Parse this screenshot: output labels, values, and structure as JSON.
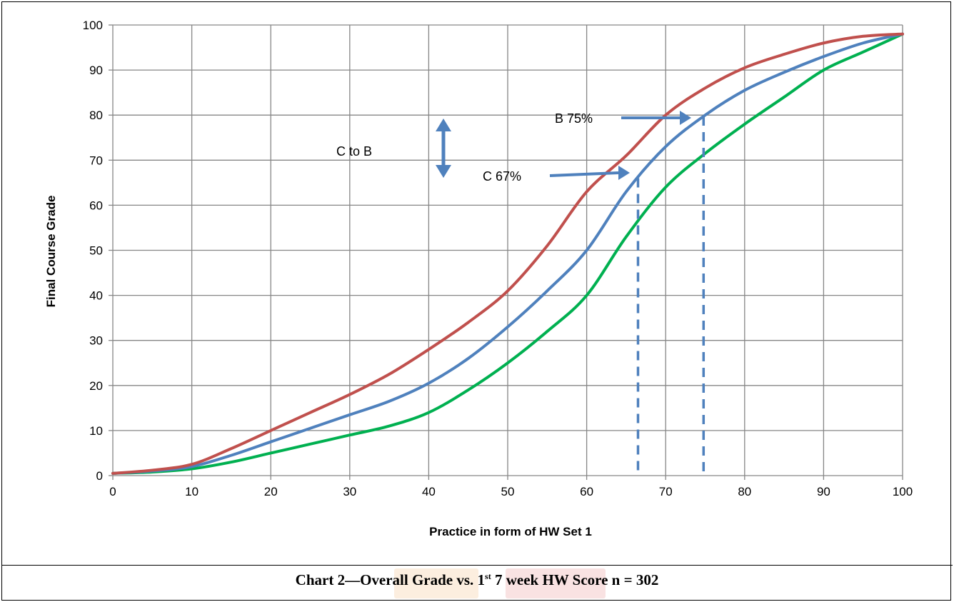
{
  "colors": {
    "red_series": "#C0504D",
    "blue_series": "#4F81BD",
    "green_series": "#00B050",
    "grid": "#868686",
    "arrow": "#4F81BD",
    "watermark_orange": "#F0A050",
    "watermark_red": "#E06060"
  },
  "chart_data": {
    "type": "line",
    "xlabel": "Practice in form of HW Set 1",
    "ylabel": "Final Course Grade",
    "xlim": [
      0,
      100
    ],
    "ylim": [
      0,
      100
    ],
    "x_ticks": [
      "0",
      "10",
      "20",
      "30",
      "40",
      "50",
      "60",
      "70",
      "80",
      "90",
      "100"
    ],
    "y_ticks": [
      "0",
      "10",
      "20",
      "30",
      "40",
      "50",
      "60",
      "70",
      "80",
      "90",
      "100"
    ],
    "grid": true,
    "legend": "none",
    "series": [
      {
        "color_key": "red_series",
        "x": [
          0,
          5,
          10,
          15,
          20,
          25,
          30,
          35,
          40,
          45,
          50,
          55,
          60,
          65,
          70,
          75,
          80,
          85,
          90,
          95,
          100
        ],
        "values": [
          0.5,
          1.2,
          2.5,
          6,
          10,
          14,
          18,
          22.5,
          28,
          34,
          41,
          51,
          63,
          71,
          80,
          86,
          90.5,
          93.5,
          96,
          97.5,
          98
        ]
      },
      {
        "color_key": "blue_series",
        "x": [
          0,
          5,
          10,
          15,
          20,
          25,
          30,
          35,
          40,
          45,
          50,
          55,
          60,
          65,
          70,
          75,
          80,
          85,
          90,
          95,
          100
        ],
        "values": [
          0.5,
          1,
          2,
          4.5,
          7.5,
          10.5,
          13.5,
          16.5,
          20.5,
          26,
          33,
          41,
          50,
          63,
          73,
          80,
          85.5,
          89.5,
          93,
          96,
          98
        ]
      },
      {
        "color_key": "green_series",
        "x": [
          0,
          5,
          10,
          15,
          20,
          25,
          30,
          35,
          40,
          45,
          50,
          55,
          60,
          65,
          70,
          75,
          80,
          85,
          90,
          95,
          100
        ],
        "values": [
          0.5,
          0.8,
          1.5,
          3,
          5,
          7,
          9,
          11,
          14,
          19,
          25,
          32,
          40,
          53,
          64,
          71.5,
          78,
          84,
          90,
          94,
          98
        ]
      }
    ],
    "annotations": {
      "c_to_b": "C to B",
      "c67": "C 67%",
      "b75": "B 75%"
    },
    "reference_lines_x": [
      66.5,
      74.8
    ]
  },
  "caption": {
    "prefix": "Chart 2—Overall Grade vs. 1",
    "superscript": "st",
    "suffix": "  7 week HW Score n = 302"
  }
}
